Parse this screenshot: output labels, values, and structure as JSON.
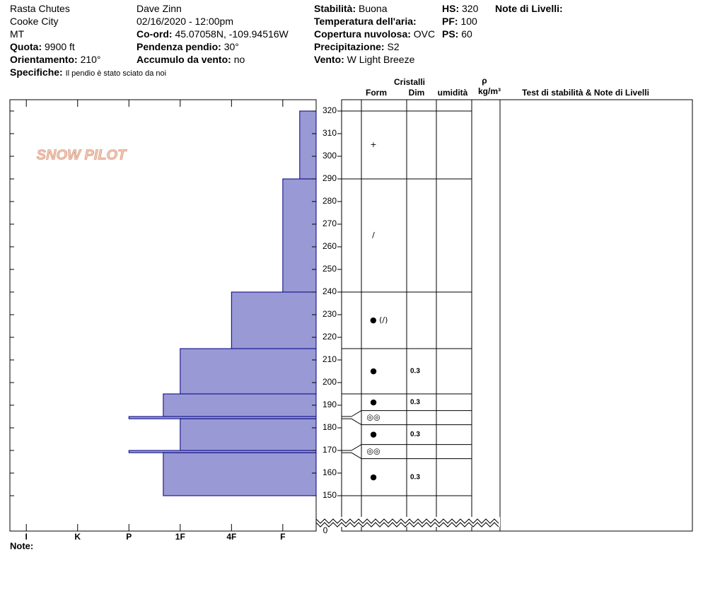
{
  "header": {
    "columns": [
      {
        "items": [
          {
            "value": "Rasta Chutes"
          },
          {
            "value": "Cooke City"
          },
          {
            "value": "MT"
          },
          {
            "label": "Quota:",
            "value": "9900 ft"
          },
          {
            "label": "Orientamento:",
            "value": "210°"
          },
          {
            "label": "Specifiche:",
            "value": "Il pendio è stato sciato da noi"
          }
        ]
      },
      {
        "items": [
          {
            "value": "Dave Zinn"
          },
          {
            "value": "02/16/2020 - 12:00pm"
          },
          {
            "label": "Co-ord:",
            "value": "45.07058N, -109.94516W"
          },
          {
            "label": "Pendenza pendio:",
            "value": "30°"
          },
          {
            "label": "Accumulo da vento:",
            "value": "no"
          }
        ]
      },
      {
        "items": [
          {
            "label": "Stabilità:",
            "value": "Buona"
          },
          {
            "label": "Temperatura dell'aria:"
          },
          {
            "label": "Copertura nuvolosa:",
            "value": "OVC"
          },
          {
            "label": "Precipitazione:",
            "value": "S2"
          },
          {
            "label": "Vento:",
            "value": "W Light Breeze"
          }
        ]
      },
      {
        "items": [
          {
            "label": "HS:",
            "value": "320"
          },
          {
            "label": "PF:",
            "value": "100"
          },
          {
            "label": "PS:",
            "value": "60"
          }
        ]
      },
      {
        "items": [
          {
            "label": "Note di Livelli:"
          }
        ]
      }
    ]
  },
  "column_headers": {
    "crystals": "Cristalli",
    "form": "Form",
    "dim": "Dim",
    "moisture": "umidità",
    "density_symbol": "ρ",
    "density_unit": "kg/m³",
    "tests": "Test di stabilità & Note di Livelli"
  },
  "logo": "SNOW PILOT",
  "footer": {
    "notes": "Note:"
  },
  "chart_data": {
    "type": "hardness_profile",
    "ylim": [
      150,
      320
    ],
    "yticks": [
      150,
      160,
      170,
      180,
      190,
      200,
      210,
      220,
      230,
      240,
      250,
      260,
      270,
      280,
      290,
      300,
      310,
      320
    ],
    "ybreak_tick": 0,
    "xlim": [
      6.32,
      0.35
    ],
    "xticks": [
      {
        "value": 6,
        "label": "I"
      },
      {
        "value": 5,
        "label": "K"
      },
      {
        "value": 4,
        "label": "P"
      },
      {
        "value": 3,
        "label": "1F"
      },
      {
        "value": 2,
        "label": "4F"
      },
      {
        "value": 1,
        "label": "F"
      }
    ],
    "color": "#9999d6",
    "edge_color": "#000080",
    "layers": [
      {
        "top": 320,
        "bottom": 290,
        "hardness": 0.67,
        "form": "+"
      },
      {
        "top": 290,
        "bottom": 240,
        "hardness": 1,
        "form": "/"
      },
      {
        "top": 240,
        "bottom": 215,
        "hardness": 2,
        "form": "● (/)"
      },
      {
        "top": 215,
        "bottom": 195,
        "hardness": 3,
        "form": "●",
        "dim": 0.3
      },
      {
        "top": 195,
        "bottom": 185,
        "hardness": 3.33,
        "form": "●",
        "dim": 0.3
      },
      {
        "top": 185,
        "bottom": 184,
        "hardness": 4,
        "form": "◎◎"
      },
      {
        "top": 184,
        "bottom": 170,
        "hardness": 3,
        "form": "●",
        "dim": 0.3
      },
      {
        "top": 170,
        "bottom": 169,
        "hardness": 4,
        "form": "◎◎"
      },
      {
        "top": 169,
        "bottom": 150,
        "hardness": 3.33,
        "form": "●",
        "dim": 0.3
      }
    ]
  }
}
